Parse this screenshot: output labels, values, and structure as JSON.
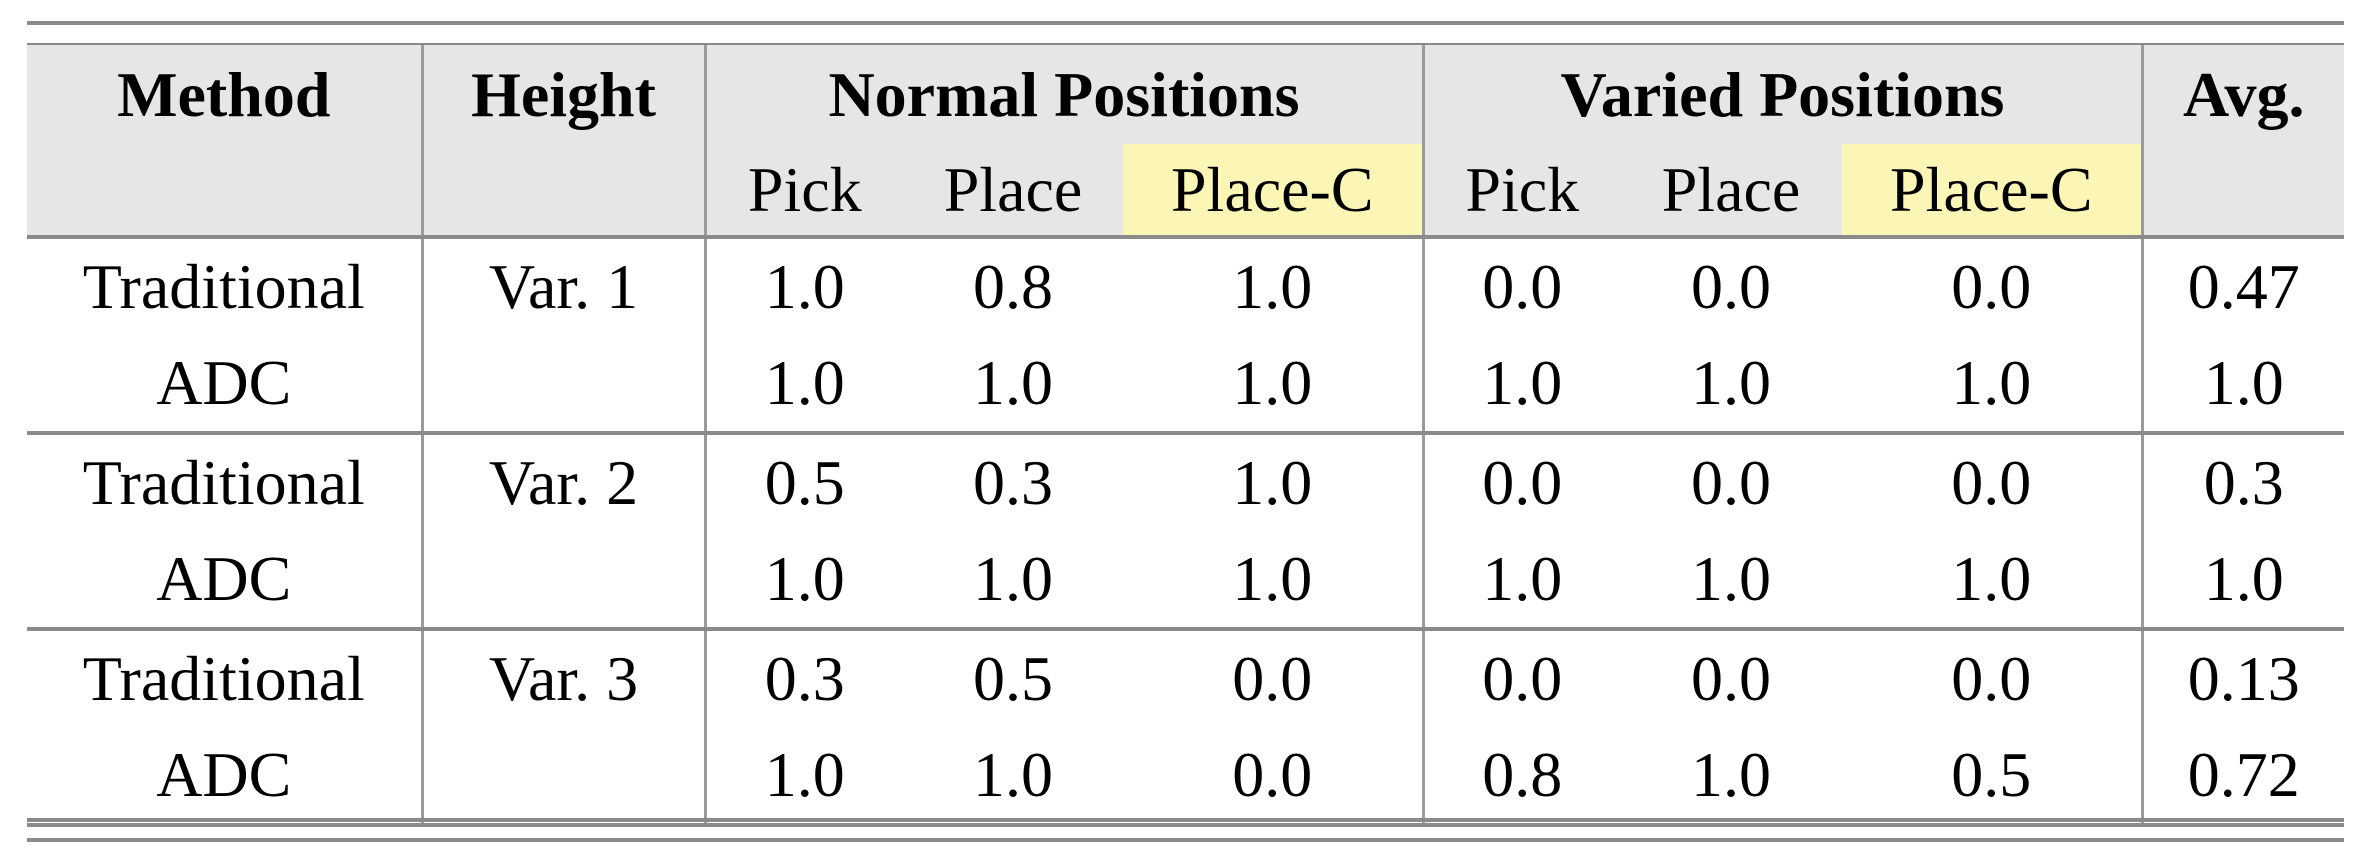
{
  "header": {
    "method": "Method",
    "height": "Height",
    "normal": "Normal Positions",
    "varied": "Varied Positions",
    "avg": "Avg.",
    "sub": [
      "Pick",
      "Place",
      "Place-C",
      "Pick",
      "Place",
      "Place-C"
    ]
  },
  "highlight_color": "#fcf6b6",
  "header_bg": "#e6e6e6",
  "groups": [
    {
      "height": "Var. 1",
      "rows": [
        {
          "method": "Traditional",
          "values": [
            "1.0",
            "0.8",
            "1.0",
            "0.0",
            "0.0",
            "0.0"
          ],
          "avg": "0.47"
        },
        {
          "method": "ADC",
          "values": [
            "1.0",
            "1.0",
            "1.0",
            "1.0",
            "1.0",
            "1.0"
          ],
          "avg": "1.0"
        }
      ]
    },
    {
      "height": "Var. 2",
      "rows": [
        {
          "method": "Traditional",
          "values": [
            "0.5",
            "0.3",
            "1.0",
            "0.0",
            "0.0",
            "0.0"
          ],
          "avg": "0.3"
        },
        {
          "method": "ADC",
          "values": [
            "1.0",
            "1.0",
            "1.0",
            "1.0",
            "1.0",
            "1.0"
          ],
          "avg": "1.0"
        }
      ]
    },
    {
      "height": "Var. 3",
      "rows": [
        {
          "method": "Traditional",
          "values": [
            "0.3",
            "0.5",
            "0.0",
            "0.0",
            "0.0",
            "0.0"
          ],
          "avg": "0.13"
        },
        {
          "method": "ADC",
          "values": [
            "1.0",
            "1.0",
            "0.0",
            "0.8",
            "1.0",
            "0.5"
          ],
          "avg": "0.72"
        }
      ]
    }
  ]
}
